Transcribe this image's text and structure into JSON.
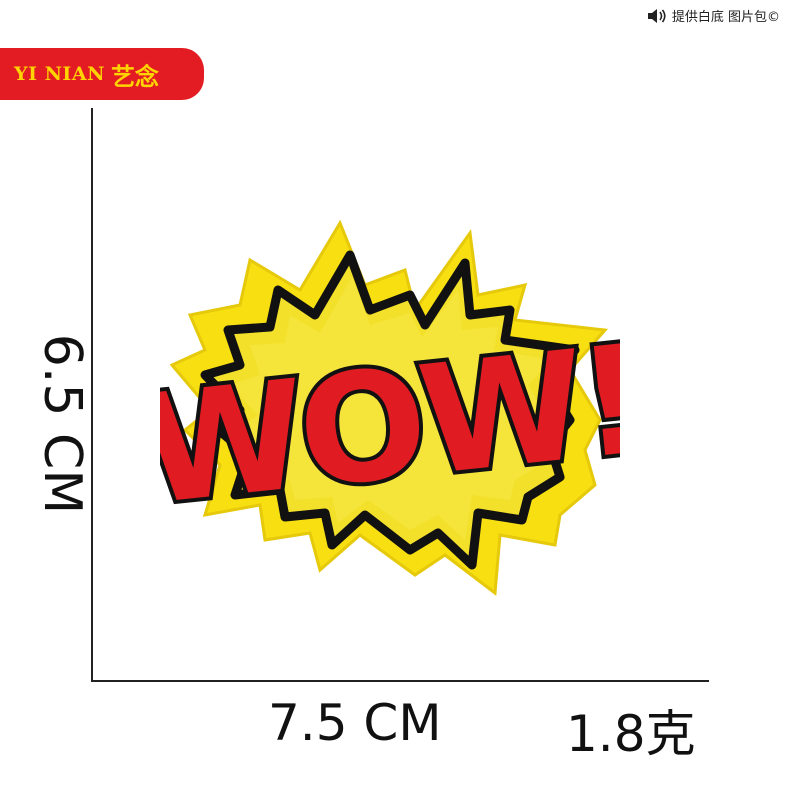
{
  "watermark": {
    "text": "提供白底 图片包©",
    "icon": "speaker-icon"
  },
  "brand": {
    "latin": "YI NIAN",
    "cjk": "艺念",
    "bg_color": "#e31c23",
    "text_color": "#ffd400"
  },
  "product": {
    "patch_text": "WOW!",
    "colors": {
      "felt": "#f7df12",
      "outline": "#111111",
      "letters": "#e01b22",
      "inner_star": "#f2e02a"
    }
  },
  "dimensions": {
    "height_label": "6.5 CM",
    "width_label": "7.5 CM",
    "weight_label": "1.8克"
  }
}
